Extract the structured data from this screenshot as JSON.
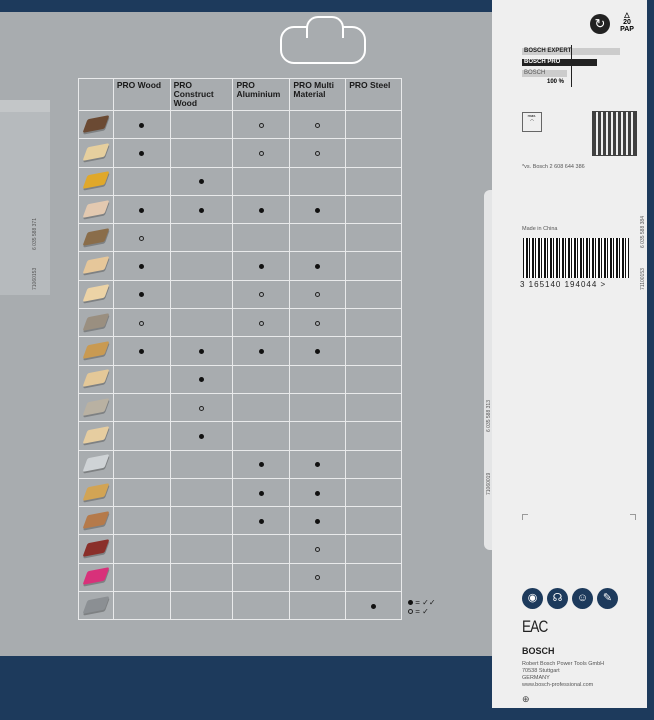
{
  "table": {
    "headers": [
      "",
      "PRO Wood",
      "PRO Construct Wood",
      "PRO Aluminium",
      "PRO Multi Material",
      "PRO Steel"
    ],
    "rows": [
      {
        "material_color": "#6b4a33",
        "marks": [
          "full",
          "",
          "empty",
          "empty",
          ""
        ]
      },
      {
        "material_color": "#e6cf9e",
        "marks": [
          "full",
          "",
          "empty",
          "empty",
          ""
        ]
      },
      {
        "material_color": "#e0a82a",
        "marks": [
          "",
          "full",
          "",
          "",
          ""
        ]
      },
      {
        "material_color": "#e3c9b0",
        "marks": [
          "full",
          "full",
          "full",
          "full",
          ""
        ]
      },
      {
        "material_color": "#8a6d4a",
        "marks": [
          "empty",
          "",
          "",
          "",
          ""
        ]
      },
      {
        "material_color": "#e6c79a",
        "marks": [
          "full",
          "",
          "full",
          "full",
          ""
        ]
      },
      {
        "material_color": "#ecd3a6",
        "marks": [
          "full",
          "",
          "empty",
          "empty",
          ""
        ]
      },
      {
        "material_color": "#9a8f80",
        "marks": [
          "empty",
          "",
          "empty",
          "empty",
          ""
        ]
      },
      {
        "material_color": "#c99a52",
        "marks": [
          "full",
          "full",
          "full",
          "full",
          ""
        ]
      },
      {
        "material_color": "#e4c898",
        "marks": [
          "",
          "full",
          "",
          "",
          ""
        ]
      },
      {
        "material_color": "#b9b1a2",
        "marks": [
          "",
          "empty",
          "",
          "",
          ""
        ]
      },
      {
        "material_color": "#e6cda0",
        "marks": [
          "",
          "full",
          "",
          "",
          ""
        ]
      },
      {
        "material_color": "#cfd3d6",
        "marks": [
          "",
          "",
          "full",
          "full",
          ""
        ]
      },
      {
        "material_color": "#d2a454",
        "marks": [
          "",
          "",
          "full",
          "full",
          ""
        ]
      },
      {
        "material_color": "#b57a4a",
        "marks": [
          "",
          "",
          "full",
          "full",
          ""
        ]
      },
      {
        "material_color": "#8a2f2a",
        "marks": [
          "",
          "",
          "",
          "empty",
          ""
        ]
      },
      {
        "material_color": "#d8317a",
        "marks": [
          "",
          "",
          "",
          "empty",
          ""
        ]
      },
      {
        "material_color": "#8b8f93",
        "marks": [
          "",
          "",
          "",
          "",
          "full"
        ]
      }
    ]
  },
  "legend": {
    "full": "= ✓✓",
    "empty": "= ✓"
  },
  "side_codes": {
    "left_1": "6 035 588 371",
    "left_2": "71060153",
    "mid_1": "6 035 588 313",
    "mid_2": "71060019",
    "right_1": "6 035 588 384",
    "right_2": "71100153"
  },
  "card": {
    "recycle_number": "20",
    "recycle_label": "PAP",
    "tiers": [
      "BOSCH EXPERT",
      "BOSCH PRO",
      "BOSCH"
    ],
    "tier_percent": "100 %",
    "gauge_label": "max.",
    "footnote": "*vs. Bosch 2 608 644 386",
    "made_in": "Made in China",
    "barcode": "3 165140 194044 >",
    "eac": "EAC",
    "brand": "BOSCH",
    "address": [
      "Robert Bosch Power Tools GmbH",
      "70538 Stuttgart",
      "GERMANY",
      "www.bosch-professional.com"
    ],
    "safety_icons": [
      "eye-protection-icon",
      "ear-protection-icon",
      "dust-mask-icon",
      "read-manual-icon"
    ]
  },
  "colors": {
    "navy": "#1d3a5c",
    "panel": "#a8acaf",
    "card": "#efefef"
  }
}
